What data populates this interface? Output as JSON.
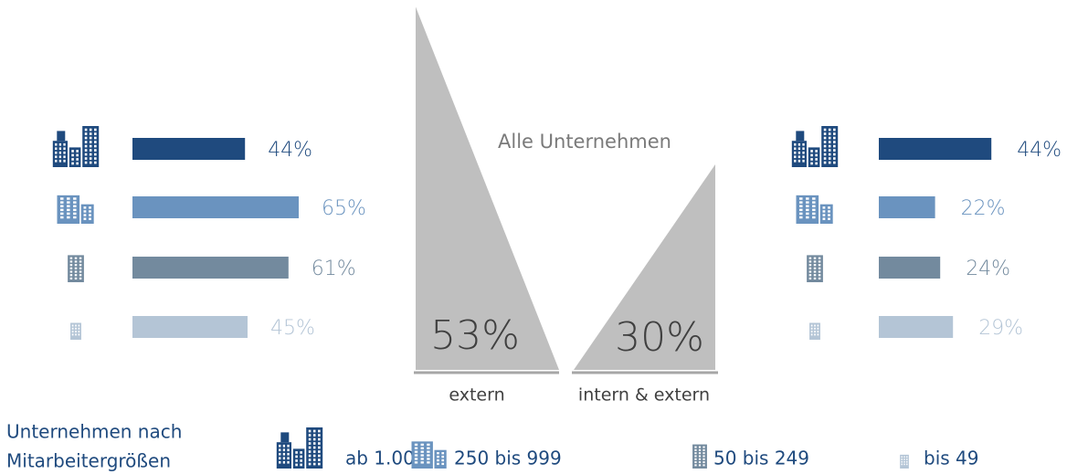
{
  "chart_data": {
    "type": "infographic",
    "center": {
      "title": "Alle Unternehmen",
      "values": [
        53,
        30
      ],
      "value_labels": [
        "53%",
        "30%"
      ],
      "labels": [
        "extern",
        "intern & extern"
      ],
      "color": "#bfbfbf"
    },
    "left": {
      "values": [
        44,
        65,
        61,
        45
      ],
      "value_labels": [
        "44%",
        "65%",
        "61%",
        "45%"
      ]
    },
    "right": {
      "values": [
        44,
        22,
        24,
        29
      ],
      "value_labels": [
        "44%",
        "22%",
        "24%",
        "29%"
      ]
    },
    "legend": {
      "title": [
        "Unternehmen nach",
        "Mitarbeitergrößen"
      ],
      "sizes": [
        "ab 1.000",
        "250 bis 999",
        "50 bis 249",
        "bis 49"
      ],
      "colors": [
        "#1f4a7e",
        "#6a93bf",
        "#738a9e",
        "#b4c5d6"
      ]
    }
  }
}
